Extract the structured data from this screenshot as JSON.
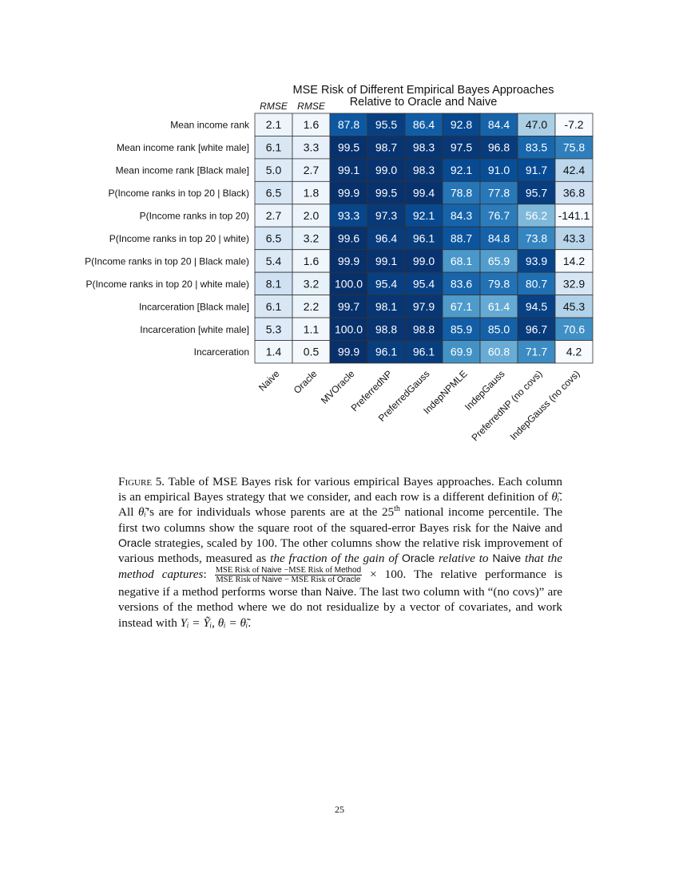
{
  "chart_data": {
    "type": "heatmap",
    "title": "MSE Risk of Different Empirical Bayes Approaches\nRelative to Oracle and Naive",
    "title_lines": [
      "MSE Risk of Different Empirical Bayes Approaches",
      "Relative to Oracle and Naive"
    ],
    "column_sublabels": [
      "RMSE",
      "RMSE"
    ],
    "colormap": "Blues",
    "columns": [
      "Naive",
      "Oracle",
      "MVOracle",
      "PreferredNP",
      "PreferredGauss",
      "IndepNPMLE",
      "IndepGauss",
      "PreferredNP (no covs)",
      "IndepGauss (no covs)"
    ],
    "rows": [
      "Mean income rank",
      "Mean income rank [white male]",
      "Mean income rank [Black male]",
      "P(Income ranks in top 20 | Black)",
      "P(Income ranks in top 20)",
      "P(Income ranks in top 20 | white)",
      "P(Income ranks in top 20 | Black male)",
      "P(Income ranks in top 20 | white male)",
      "Incarceration [Black male]",
      "Incarceration [white male]",
      "Incarceration"
    ],
    "values": [
      [
        2.1,
        1.6,
        87.8,
        95.5,
        86.4,
        92.8,
        84.4,
        47.0,
        -7.2
      ],
      [
        6.1,
        3.3,
        99.5,
        98.7,
        98.3,
        97.5,
        96.8,
        83.5,
        75.8
      ],
      [
        5.0,
        2.7,
        99.1,
        99.0,
        98.3,
        92.1,
        91.0,
        91.7,
        42.4
      ],
      [
        6.5,
        1.8,
        99.9,
        99.5,
        99.4,
        78.8,
        77.8,
        95.7,
        36.8
      ],
      [
        2.7,
        2.0,
        93.3,
        97.3,
        92.1,
        84.3,
        76.7,
        56.2,
        -141.1
      ],
      [
        6.5,
        3.2,
        99.6,
        96.4,
        96.1,
        88.7,
        84.8,
        73.8,
        43.3
      ],
      [
        5.4,
        1.6,
        99.9,
        99.1,
        99.0,
        68.1,
        65.9,
        93.9,
        14.2
      ],
      [
        8.1,
        3.2,
        100.0,
        95.4,
        95.4,
        83.6,
        79.8,
        80.7,
        32.9
      ],
      [
        6.1,
        2.2,
        99.7,
        98.1,
        97.9,
        67.1,
        61.4,
        94.5,
        45.3
      ],
      [
        5.3,
        1.1,
        100.0,
        98.8,
        98.8,
        85.9,
        85.0,
        96.7,
        70.6
      ],
      [
        1.4,
        0.5,
        99.9,
        96.1,
        96.1,
        69.9,
        60.8,
        71.7,
        4.2
      ]
    ]
  },
  "caption": {
    "segments": [
      {
        "style": "sc",
        "text": "Figure 5."
      },
      {
        "style": "",
        "text": " Table of MSE Bayes risk for various empirical Bayes approaches. Each column is an empirical Bayes strategy that we consider, and each row is a different definition of "
      },
      {
        "style": "it",
        "text": "θ̃ᵢ"
      },
      {
        "style": "",
        "text": ". All "
      },
      {
        "style": "it",
        "text": "θ̃ᵢ"
      },
      {
        "style": "",
        "text": "’s are for individuals whose parents are at the 25"
      },
      {
        "style": "sup",
        "text": "th"
      },
      {
        "style": "",
        "text": " national income percentile. The first two columns show the square root of the squared-error Bayes risk for the "
      },
      {
        "style": "sf",
        "text": "Naive"
      },
      {
        "style": "",
        "text": " and "
      },
      {
        "style": "sf",
        "text": "Oracle"
      },
      {
        "style": "",
        "text": " strategies, scaled by 100. The other columns show the relative risk improvement of various methods, measured as "
      },
      {
        "style": "it",
        "text": "the fraction of the gain of "
      },
      {
        "style": "sf",
        "text": "Oracle"
      },
      {
        "style": "it",
        "text": " relative to "
      },
      {
        "style": "sf",
        "text": "Naive"
      },
      {
        "style": "it",
        "text": " that the method captures"
      },
      {
        "style": "",
        "text": ": "
      },
      {
        "style": "frac",
        "num": [
          "MSE Risk of ",
          "Naive",
          " −MSE Risk of ",
          "Method"
        ],
        "den": [
          "MSE Risk of ",
          "Naive",
          " − MSE Risk of ",
          "Oracle"
        ]
      },
      {
        "style": "",
        "text": " × 100. The relative performance is negative if a method performs worse than "
      },
      {
        "style": "sf",
        "text": "Naive"
      },
      {
        "style": "",
        "text": ". The last two column with “(no covs)” are versions of the method where we do not residualize by a vector of covariates, and work instead with "
      },
      {
        "style": "it",
        "text": "Yᵢ = Ỹᵢ, θᵢ = θ̃ᵢ"
      },
      {
        "style": "",
        "text": "."
      }
    ]
  },
  "page_number": "25"
}
